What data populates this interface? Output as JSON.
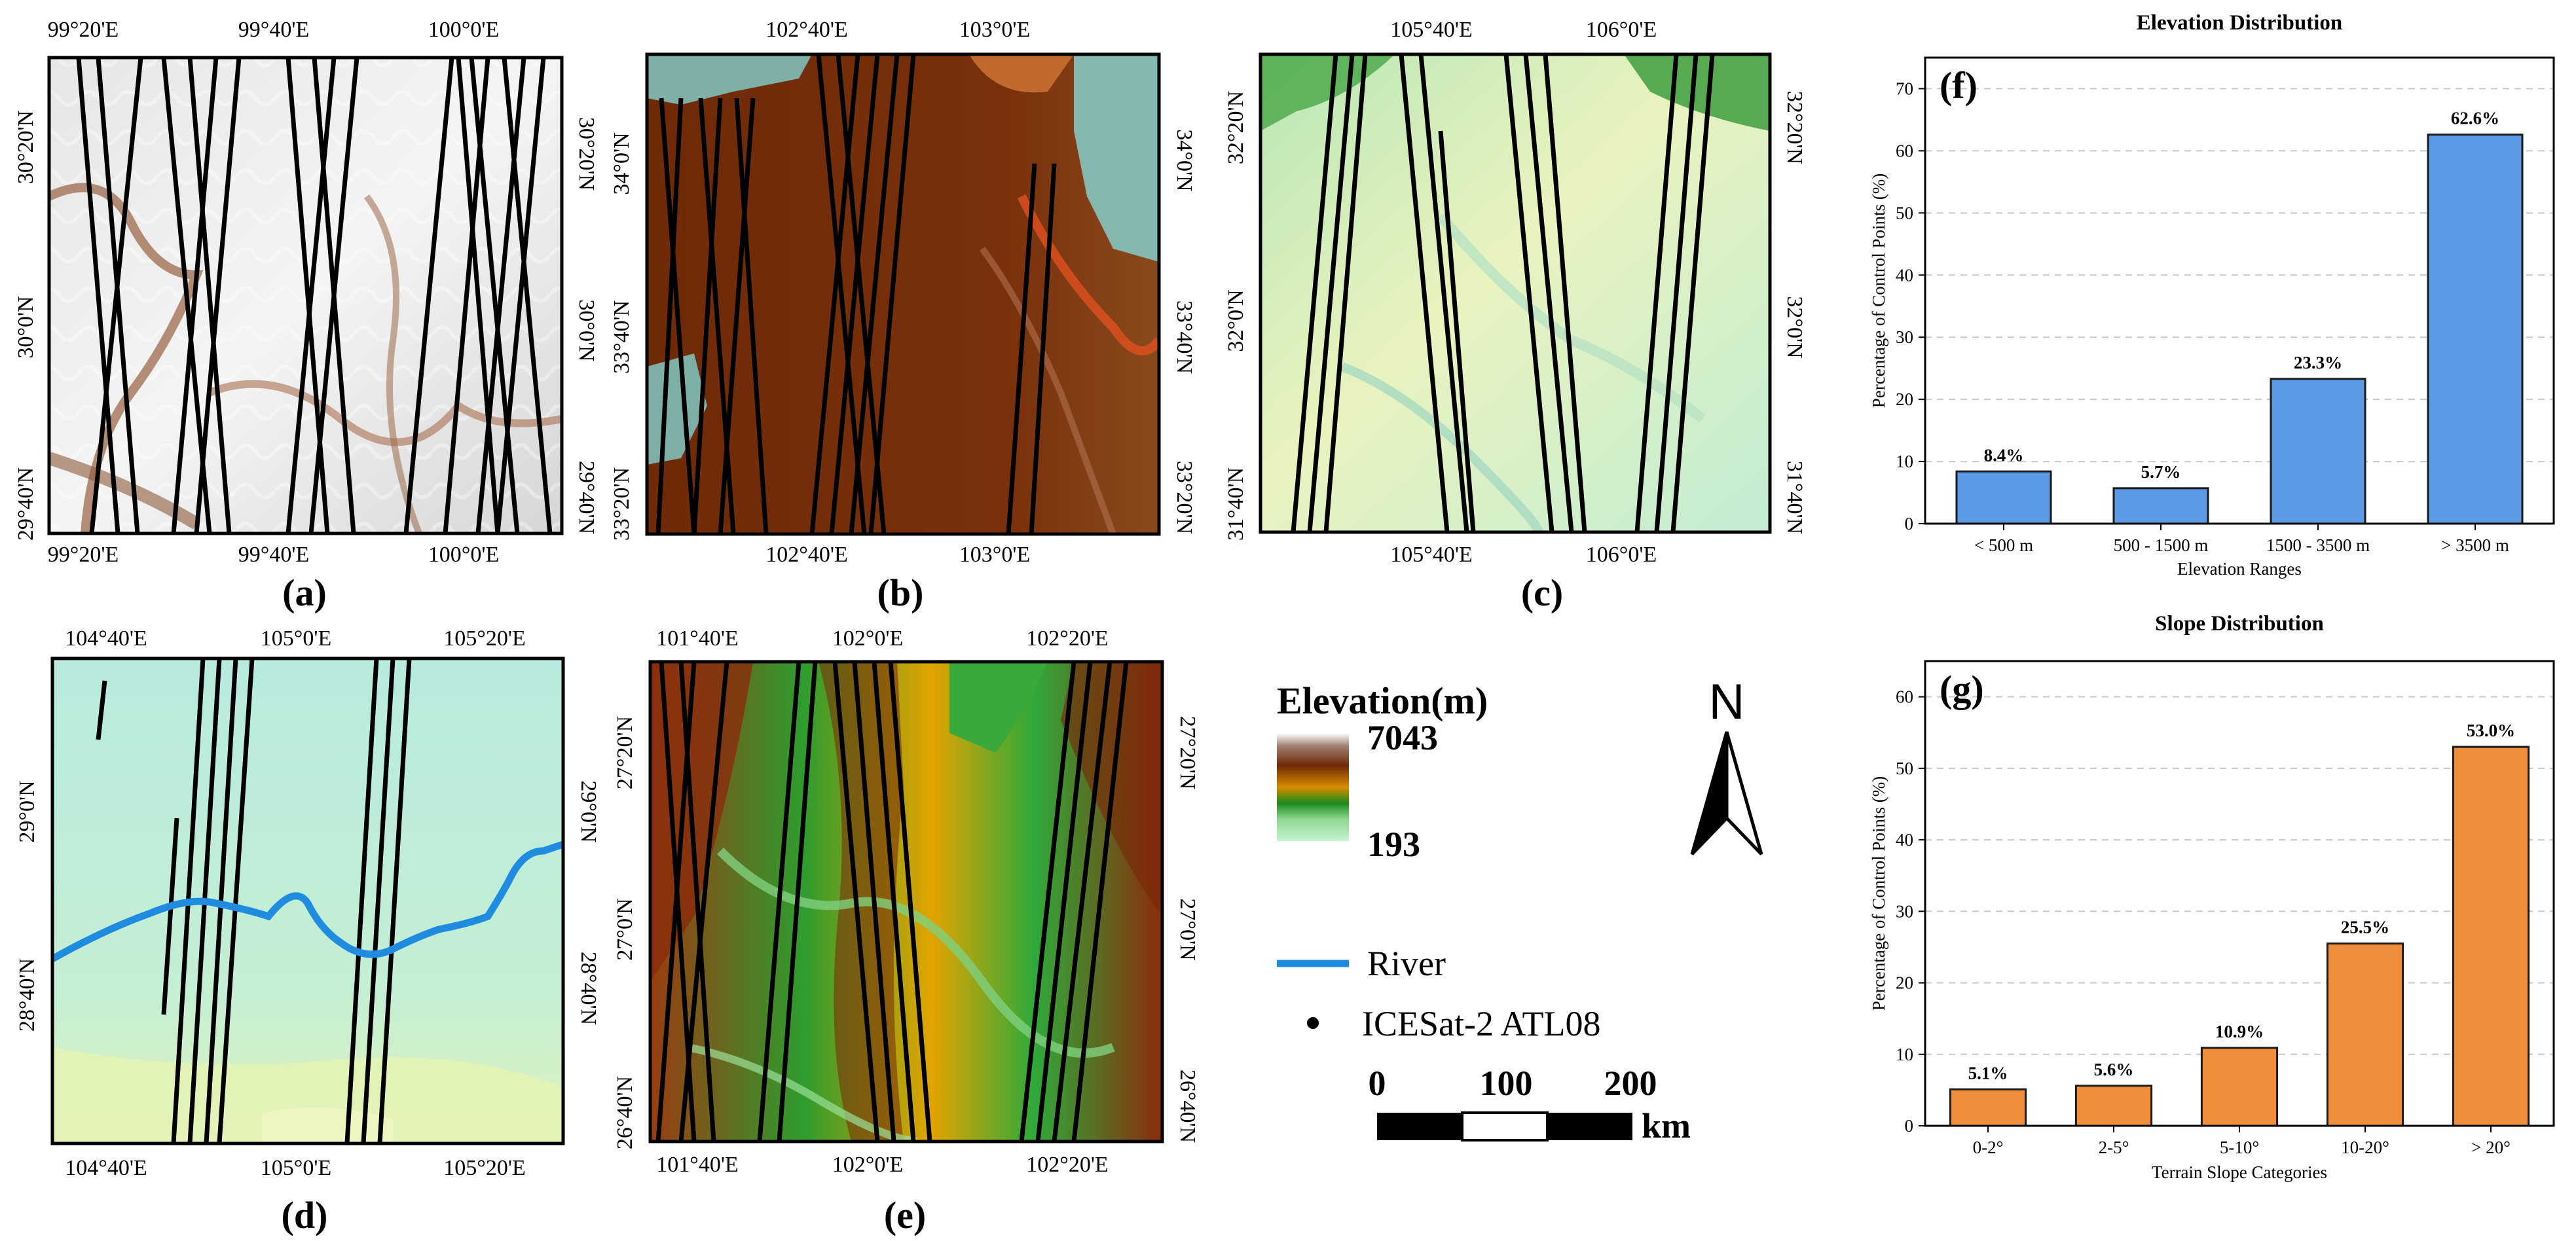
{
  "maps": [
    {
      "letter": "(a)",
      "top_lon": [
        "99°20'E",
        "99°40'E",
        "100°0'E"
      ],
      "bottom_lon": [
        "99°20'E",
        "99°40'E",
        "100°0'E"
      ],
      "left_lat": [
        "30°20'N",
        "30°0'N",
        "29°40'N"
      ],
      "right_lat": [
        "30°20'N",
        "30°0'N",
        "29°40'N"
      ]
    },
    {
      "letter": "(b)",
      "top_lon": [
        "102°40'E",
        "103°0'E"
      ],
      "bottom_lon": [
        "102°40'E",
        "103°0'E"
      ],
      "left_lat": [
        "34°0'N",
        "33°40'N",
        "33°20'N"
      ],
      "right_lat": [
        "34°0'N",
        "33°40'N",
        "33°20'N"
      ]
    },
    {
      "letter": "(c)",
      "top_lon": [
        "105°40'E",
        "106°0'E"
      ],
      "bottom_lon": [
        "105°40'E",
        "106°0'E"
      ],
      "left_lat": [
        "32°20'N",
        "32°0'N",
        "31°40'N"
      ],
      "right_lat": [
        "32°20'N",
        "32°0'N",
        "31°40'N"
      ]
    },
    {
      "letter": "(d)",
      "top_lon": [
        "104°40'E",
        "105°0'E",
        "105°20'E"
      ],
      "bottom_lon": [
        "104°40'E",
        "105°0'E",
        "105°20'E"
      ],
      "left_lat": [
        "29°0'N",
        "28°40'N"
      ],
      "right_lat": [
        "29°0'N",
        "28°40'N"
      ]
    },
    {
      "letter": "(e)",
      "top_lon": [
        "101°40'E",
        "102°0'E",
        "102°20'E"
      ],
      "bottom_lon": [
        "101°40'E",
        "102°0'E",
        "102°20'E"
      ],
      "left_lat": [
        "27°20'N",
        "27°0'N",
        "26°40'N"
      ],
      "right_lat": [
        "27°20'N",
        "27°0'N",
        "26°40'N"
      ]
    }
  ],
  "legend": {
    "title": "Elevation(m)",
    "max": "7043",
    "min": "193",
    "river": "River",
    "points": "ICESat-2 ATL08",
    "scale_ticks": [
      "0",
      "100",
      "200"
    ],
    "scale_unit": "km",
    "north": "N",
    "river_color": "#1f8ce0"
  },
  "chart_data": [
    {
      "type": "bar",
      "letter": "(f)",
      "title": "Elevation Distribution",
      "xlabel": "Elevation Ranges",
      "ylabel": "Percentage of Control Points (%)",
      "categories": [
        "< 500 m",
        "500 - 1500 m",
        "1500 - 3500 m",
        "> 3500 m"
      ],
      "values": [
        8.4,
        5.7,
        23.3,
        62.6
      ],
      "value_labels": [
        "8.4%",
        "5.7%",
        "23.3%",
        "62.6%"
      ],
      "ylim": [
        0,
        75
      ],
      "yticks": [
        "0",
        "10",
        "20",
        "30",
        "40",
        "50",
        "60",
        "70"
      ],
      "grid": true,
      "color": "#5b9be6"
    },
    {
      "type": "bar",
      "letter": "(g)",
      "title": "Slope Distribution",
      "xlabel": "Terrain Slope Categories",
      "ylabel": "Percentage of Control Points (%)",
      "categories": [
        "0-2°",
        "2-5°",
        "5-10°",
        "10-20°",
        "> 20°"
      ],
      "values": [
        5.1,
        5.6,
        10.9,
        25.5,
        53.0
      ],
      "value_labels": [
        "5.1%",
        "5.6%",
        "10.9%",
        "25.5%",
        "53.0%"
      ],
      "ylim": [
        0,
        65
      ],
      "yticks": [
        "0",
        "10",
        "20",
        "30",
        "40",
        "50",
        "60"
      ],
      "grid": true,
      "color": "#ee8e3a"
    }
  ]
}
